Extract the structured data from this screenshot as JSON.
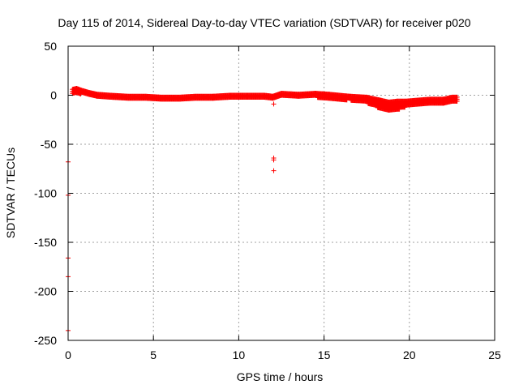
{
  "chart_data": {
    "type": "scatter",
    "title": "Day 115 of 2014, Sidereal Day-to-day VTEC variation (SDTVAR) for receiver p020",
    "xlabel": "GPS time / hours",
    "ylabel": "SDTVAR / TECUs",
    "xlim": [
      0,
      25
    ],
    "ylim": [
      -250,
      50
    ],
    "xticks": [
      0,
      5,
      10,
      15,
      20,
      25
    ],
    "yticks": [
      -250,
      -200,
      -150,
      -100,
      -50,
      0,
      50
    ],
    "xtick_labels": [
      "0",
      "5",
      "10",
      "15",
      "20",
      "25"
    ],
    "ytick_labels": [
      "-250",
      "-200",
      "-150",
      "-100",
      "-50",
      "0",
      "50"
    ],
    "grid": true,
    "marker": "+",
    "color": "#ff0000",
    "series": [
      {
        "name": "SDTVAR",
        "band": [
          {
            "x": 0.25,
            "lo": 1,
            "hi": 6
          },
          {
            "x": 0.5,
            "lo": 2,
            "hi": 7
          },
          {
            "x": 0.8,
            "lo": 1,
            "hi": 5
          },
          {
            "x": 1.2,
            "lo": -1,
            "hi": 3
          },
          {
            "x": 1.7,
            "lo": -2,
            "hi": 1
          },
          {
            "x": 2.5,
            "lo": -3,
            "hi": 0
          },
          {
            "x": 3.5,
            "lo": -4,
            "hi": -1
          },
          {
            "x": 4.5,
            "lo": -5,
            "hi": -1
          },
          {
            "x": 5.5,
            "lo": -6,
            "hi": -2
          },
          {
            "x": 6.5,
            "lo": -5,
            "hi": -2
          },
          {
            "x": 7.5,
            "lo": -5,
            "hi": -1
          },
          {
            "x": 8.5,
            "lo": -4,
            "hi": -1
          },
          {
            "x": 9.5,
            "lo": -3,
            "hi": 0
          },
          {
            "x": 10.5,
            "lo": -3,
            "hi": 0
          },
          {
            "x": 11.5,
            "lo": -3,
            "hi": 0
          },
          {
            "x": 12.0,
            "lo": -4,
            "hi": -1
          },
          {
            "x": 12.5,
            "lo": -2,
            "hi": 2
          },
          {
            "x": 13.5,
            "lo": -2,
            "hi": 1
          },
          {
            "x": 14.5,
            "lo": -2,
            "hi": 2
          },
          {
            "x": 15.3,
            "lo": -4,
            "hi": 1
          },
          {
            "x": 16.5,
            "lo": -5,
            "hi": -1
          },
          {
            "x": 17.5,
            "lo": -8,
            "hi": -2
          },
          {
            "x": 18.3,
            "lo": -14,
            "hi": -5
          },
          {
            "x": 18.8,
            "lo": -16,
            "hi": -7
          },
          {
            "x": 19.3,
            "lo": -15,
            "hi": -6
          },
          {
            "x": 19.8,
            "lo": -12,
            "hi": -6
          },
          {
            "x": 20.5,
            "lo": -11,
            "hi": -5
          },
          {
            "x": 21.2,
            "lo": -10,
            "hi": -4
          },
          {
            "x": 22.0,
            "lo": -10,
            "hi": -4
          },
          {
            "x": 22.5,
            "lo": -8,
            "hi": -2
          },
          {
            "x": 22.8,
            "lo": -7,
            "hi": -2
          }
        ],
        "outliers": [
          {
            "x": 0.0,
            "y": -68
          },
          {
            "x": 0.0,
            "y": -102
          },
          {
            "x": 0.0,
            "y": -166
          },
          {
            "x": 0.0,
            "y": -185
          },
          {
            "x": 0.0,
            "y": -240
          },
          {
            "x": 12.05,
            "y": -9
          },
          {
            "x": 12.05,
            "y": -64
          },
          {
            "x": 12.05,
            "y": -66
          },
          {
            "x": 12.05,
            "y": -77
          }
        ]
      }
    ]
  }
}
